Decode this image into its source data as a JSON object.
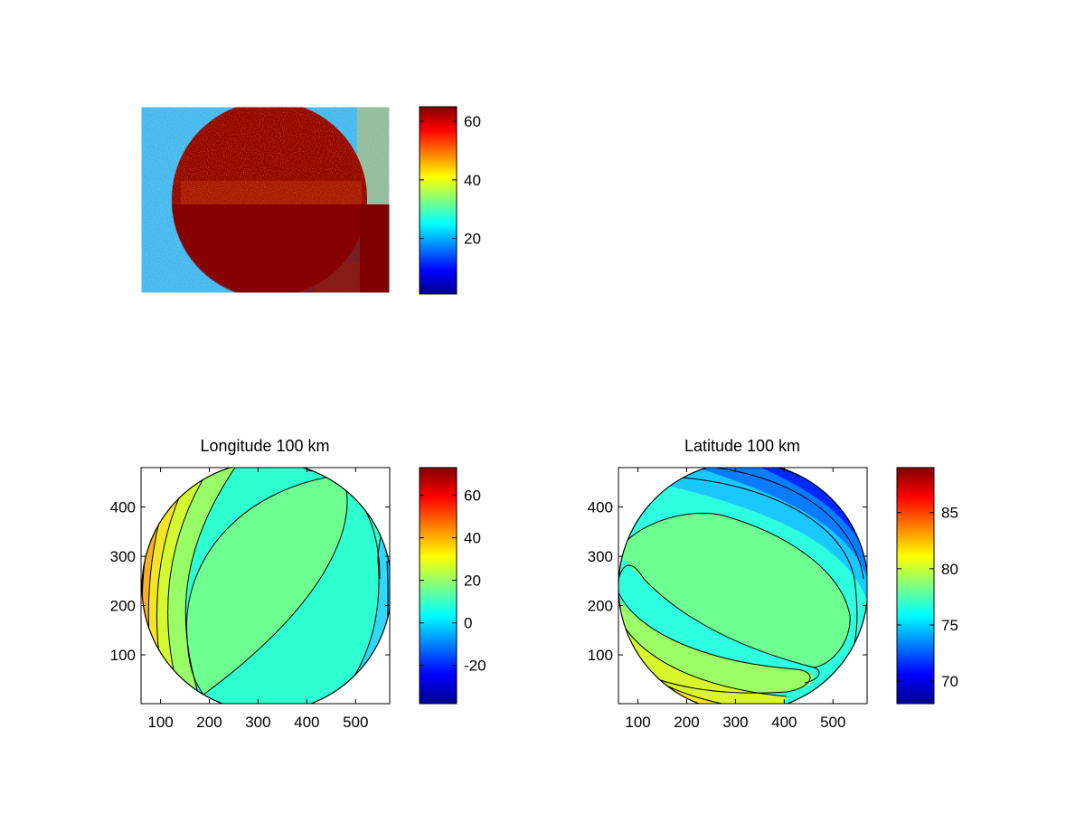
{
  "chart_data": [
    {
      "type": "heatmap",
      "title": "",
      "description_values": "noisy intensity image: bright disc on a mid-level background",
      "colormap": "jet",
      "x_ticks": [],
      "y_ticks": [],
      "clim": [
        1,
        65
      ],
      "colorbar": {
        "ticks": [
          20,
          40,
          60
        ],
        "tick_labels": [
          "20",
          "40",
          "60"
        ]
      },
      "values": {
        "background_level": 26,
        "disc_level": 62
      }
    },
    {
      "type": "heatmap",
      "title": "Longitude 100 km",
      "colormap": "jet",
      "xlim": [
        60,
        570
      ],
      "ylim": [
        1,
        480
      ],
      "x_ticks": [
        100,
        200,
        300,
        400,
        500
      ],
      "x_tick_labels": [
        "100",
        "200",
        "300",
        "400",
        "500"
      ],
      "y_ticks": [
        100,
        200,
        300,
        400
      ],
      "y_tick_labels": [
        "100",
        "200",
        "300",
        "400"
      ],
      "clim": [
        -38,
        73
      ],
      "colorbar": {
        "ticks": [
          -20,
          0,
          20,
          40,
          60
        ],
        "tick_labels": [
          "-20",
          "0",
          "20",
          "40",
          "60"
        ]
      },
      "contour_levels": [
        30,
        22,
        14,
        6,
        -2,
        38,
        46
      ]
    },
    {
      "type": "heatmap",
      "title": "Latitude 100 km",
      "colormap": "jet",
      "xlim": [
        60,
        570
      ],
      "ylim": [
        1,
        480
      ],
      "x_ticks": [
        100,
        200,
        300,
        400,
        500
      ],
      "x_tick_labels": [
        "100",
        "200",
        "300",
        "400",
        "500"
      ],
      "y_ticks": [
        100,
        200,
        300,
        400
      ],
      "y_tick_labels": [
        "100",
        "200",
        "300",
        "400"
      ],
      "clim": [
        68,
        89
      ],
      "colorbar": {
        "ticks": [
          70,
          75,
          80,
          85
        ],
        "tick_labels": [
          "70",
          "75",
          "80",
          "85"
        ]
      },
      "contour_levels": [
        74,
        76.5,
        78,
        80,
        82
      ]
    }
  ]
}
